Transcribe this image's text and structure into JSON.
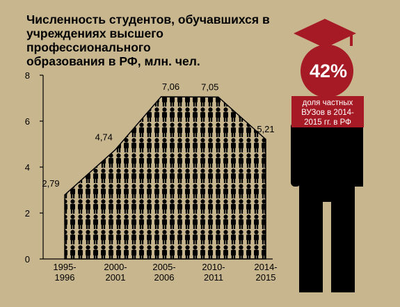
{
  "title": "Численность студентов, обучавшихся в\nучреждениях высшего профессионального\nобразования в РФ, млн. чел.",
  "badge": {
    "value": "42%",
    "label": "доля частных\nВУЗов в 2014-\n2015 гг. в РФ",
    "color": "#a61a25"
  },
  "colors": {
    "background": "#c8b68f",
    "figure": "#000000",
    "accent": "#a61a25"
  },
  "chart_data": {
    "type": "area",
    "title": "Численность студентов, обучавшихся в учреждениях высшего профессионального образования в РФ, млн. чел.",
    "categories": [
      "1995-\n1996",
      "2000-\n2001",
      "2005-\n2006",
      "2010-\n2011",
      "2014-\n2015"
    ],
    "points": [
      {
        "x": "1995-1996",
        "y": 2.79,
        "label": "2,79"
      },
      {
        "x": "2000-2001",
        "y": 4.74,
        "label": "4,74"
      },
      {
        "x": "2005-2006",
        "y": 7.06,
        "label": "7,06"
      },
      {
        "x": "2010-2011",
        "y": 7.05,
        "label": "7,05"
      },
      {
        "x": "2014-2015",
        "y": 5.21,
        "label": "5,21"
      }
    ],
    "yticks": [
      "0",
      "2",
      "4",
      "6",
      "8"
    ],
    "ylim": [
      0,
      8
    ],
    "grid": false,
    "fill": "pattern of student silhouettes"
  }
}
